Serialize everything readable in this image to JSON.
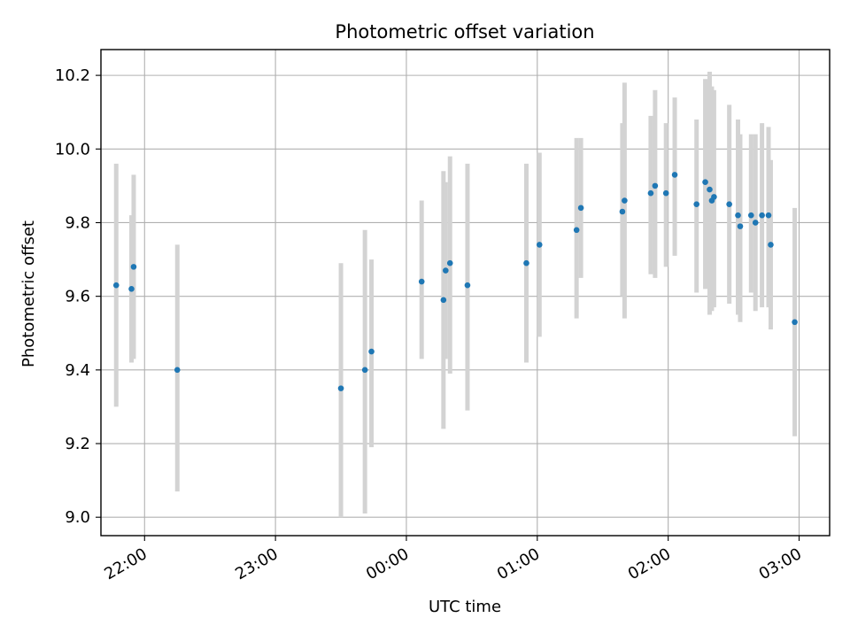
{
  "chart_data": {
    "type": "scatter",
    "title": "Photometric offset variation",
    "xlabel": "UTC time",
    "ylabel": "Photometric offset",
    "x_axis_type": "time",
    "xlim": [
      "21:40",
      "03:14"
    ],
    "ylim": [
      8.95,
      10.27
    ],
    "x_ticks": [
      "22:00",
      "23:00",
      "00:00",
      "01:00",
      "02:00",
      "03:00"
    ],
    "y_ticks": [
      9.0,
      9.2,
      9.4,
      9.6,
      9.8,
      10.0,
      10.2
    ],
    "y_tick_labels": [
      "9.0",
      "9.2",
      "9.4",
      "9.6",
      "9.8",
      "10.0",
      "10.2"
    ],
    "grid": true,
    "legend": "none",
    "colors": {
      "points": "#1f77b4",
      "error_bars": "#d3d3d3",
      "grid": "#b0b0b0"
    },
    "series": [
      {
        "points": [
          {
            "x": "21:47",
            "y": 9.63,
            "ylow": 9.3,
            "yhigh": 9.96
          },
          {
            "x": "21:54",
            "y": 9.62,
            "ylow": 9.42,
            "yhigh": 9.82
          },
          {
            "x": "21:55",
            "y": 9.68,
            "ylow": 9.43,
            "yhigh": 9.93
          },
          {
            "x": "22:15",
            "y": 9.4,
            "ylow": 9.07,
            "yhigh": 9.74
          },
          {
            "x": "23:30",
            "y": 9.35,
            "ylow": 9.0,
            "yhigh": 9.69
          },
          {
            "x": "23:41",
            "y": 9.4,
            "ylow": 9.01,
            "yhigh": 9.78
          },
          {
            "x": "23:44",
            "y": 9.45,
            "ylow": 9.19,
            "yhigh": 9.7
          },
          {
            "x": "00:07",
            "y": 9.64,
            "ylow": 9.43,
            "yhigh": 9.86
          },
          {
            "x": "00:17",
            "y": 9.59,
            "ylow": 9.24,
            "yhigh": 9.94
          },
          {
            "x": "00:18",
            "y": 9.67,
            "ylow": 9.43,
            "yhigh": 9.91
          },
          {
            "x": "00:20",
            "y": 9.69,
            "ylow": 9.39,
            "yhigh": 9.98
          },
          {
            "x": "00:28",
            "y": 9.63,
            "ylow": 9.29,
            "yhigh": 9.96
          },
          {
            "x": "00:55",
            "y": 9.69,
            "ylow": 9.42,
            "yhigh": 9.96
          },
          {
            "x": "01:01",
            "y": 9.74,
            "ylow": 9.49,
            "yhigh": 9.99
          },
          {
            "x": "01:18",
            "y": 9.78,
            "ylow": 9.54,
            "yhigh": 10.03
          },
          {
            "x": "01:20",
            "y": 9.84,
            "ylow": 9.65,
            "yhigh": 10.03
          },
          {
            "x": "01:39",
            "y": 9.83,
            "ylow": 9.6,
            "yhigh": 10.07
          },
          {
            "x": "01:40",
            "y": 9.86,
            "ylow": 9.54,
            "yhigh": 10.18
          },
          {
            "x": "01:52",
            "y": 9.88,
            "ylow": 9.66,
            "yhigh": 10.09
          },
          {
            "x": "01:54",
            "y": 9.9,
            "ylow": 9.65,
            "yhigh": 10.16
          },
          {
            "x": "01:59",
            "y": 9.88,
            "ylow": 9.68,
            "yhigh": 10.07
          },
          {
            "x": "02:03",
            "y": 9.93,
            "ylow": 9.71,
            "yhigh": 10.14
          },
          {
            "x": "02:13",
            "y": 9.85,
            "ylow": 9.61,
            "yhigh": 10.08
          },
          {
            "x": "02:17",
            "y": 9.91,
            "ylow": 9.62,
            "yhigh": 10.19
          },
          {
            "x": "02:19",
            "y": 9.89,
            "ylow": 9.55,
            "yhigh": 10.21
          },
          {
            "x": "02:20",
            "y": 9.86,
            "ylow": 9.56,
            "yhigh": 10.17
          },
          {
            "x": "02:21",
            "y": 9.87,
            "ylow": 9.57,
            "yhigh": 10.16
          },
          {
            "x": "02:28",
            "y": 9.85,
            "ylow": 9.58,
            "yhigh": 10.12
          },
          {
            "x": "02:32",
            "y": 9.82,
            "ylow": 9.55,
            "yhigh": 10.08
          },
          {
            "x": "02:33",
            "y": 9.79,
            "ylow": 9.53,
            "yhigh": 10.04
          },
          {
            "x": "02:38",
            "y": 9.82,
            "ylow": 9.61,
            "yhigh": 10.04
          },
          {
            "x": "02:40",
            "y": 9.8,
            "ylow": 9.56,
            "yhigh": 10.04
          },
          {
            "x": "02:43",
            "y": 9.82,
            "ylow": 9.57,
            "yhigh": 10.07
          },
          {
            "x": "02:46",
            "y": 9.82,
            "ylow": 9.57,
            "yhigh": 10.06
          },
          {
            "x": "02:47",
            "y": 9.74,
            "ylow": 9.51,
            "yhigh": 9.97
          },
          {
            "x": "02:58",
            "y": 9.53,
            "ylow": 9.22,
            "yhigh": 9.84
          }
        ]
      }
    ]
  }
}
